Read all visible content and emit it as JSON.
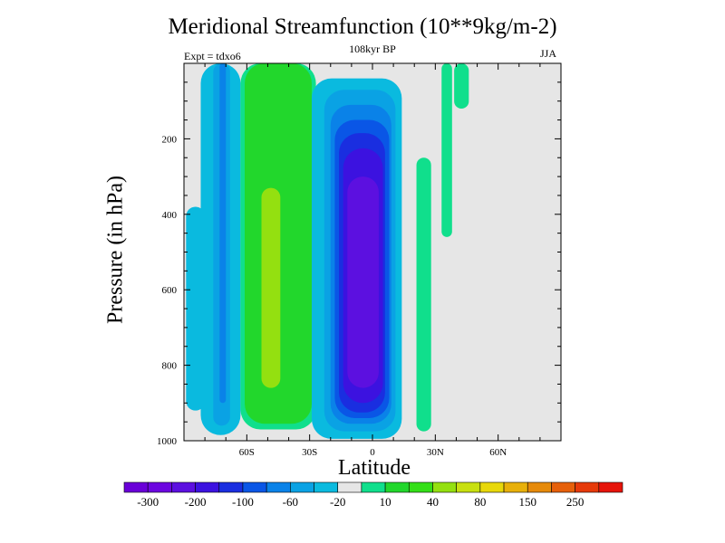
{
  "chart_data": {
    "type": "heatmap",
    "title": "Meridional Streamfunction (10**9kg/m-2)",
    "subtitle": "108kyr BP",
    "left_label": "Expt = tdxo6",
    "right_label": "JJA",
    "xlabel": "Latitude",
    "ylabel": "Pressure (in hPa)",
    "xlim": [
      -90,
      90
    ],
    "ylim": [
      1000,
      0
    ],
    "y_inverted": true,
    "x_ticks": [
      {
        "value": -60,
        "label": "60S"
      },
      {
        "value": -30,
        "label": "30S"
      },
      {
        "value": 0,
        "label": "0"
      },
      {
        "value": 30,
        "label": "30N"
      },
      {
        "value": 60,
        "label": "60N"
      }
    ],
    "y_ticks": [
      {
        "value": 200,
        "label": "200"
      },
      {
        "value": 400,
        "label": "400"
      },
      {
        "value": 600,
        "label": "600"
      },
      {
        "value": 800,
        "label": "800"
      },
      {
        "value": 1000,
        "label": "1000"
      }
    ],
    "grid": false,
    "background_color": "#e6e6e6",
    "colorbar": {
      "colors": [
        "#6a00d8",
        "#6c06e0",
        "#5c10e0",
        "#3c12e0",
        "#1a2ee0",
        "#0a56e6",
        "#0a82e8",
        "#0aa2e4",
        "#0abadf",
        "#e6e6e6",
        "#10df8c",
        "#22d72c",
        "#34df18",
        "#94e010",
        "#c8e010",
        "#e8d80a",
        "#e8b00a",
        "#e68a0a",
        "#e6600a",
        "#e63a0a",
        "#e6140a"
      ],
      "labels": [
        {
          "boundary": 1,
          "text": "-300"
        },
        {
          "boundary": 3,
          "text": "-200"
        },
        {
          "boundary": 5,
          "text": "-100"
        },
        {
          "boundary": 7,
          "text": "-60"
        },
        {
          "boundary": 9,
          "text": "-20"
        },
        {
          "boundary": 11,
          "text": "10"
        },
        {
          "boundary": 13,
          "text": "40"
        },
        {
          "boundary": 15,
          "text": "80"
        },
        {
          "boundary": 17,
          "text": "150"
        },
        {
          "boundary": 19,
          "text": "250"
        }
      ]
    },
    "regions": [
      {
        "name": "sh-negative-cell-outer",
        "color": "#0abadf",
        "lat_min": -82,
        "lat_max": -63,
        "p_top": 0,
        "p_bottom": 985
      },
      {
        "name": "sh-negative-cell-mid",
        "color": "#0aa2e4",
        "lat_min": -76,
        "lat_max": -68,
        "p_top": 0,
        "p_bottom": 960
      },
      {
        "name": "sh-negative-cell-core",
        "color": "#0a82e8",
        "lat_min": -73,
        "lat_max": -70,
        "p_top": 0,
        "p_bottom": 900
      },
      {
        "name": "sh-positive-cell-outer",
        "color": "#10df8c",
        "lat_min": -63,
        "lat_max": -27,
        "p_top": 0,
        "p_bottom": 970
      },
      {
        "name": "sh-positive-cell-mid",
        "color": "#22d72c",
        "lat_min": -61,
        "lat_max": -29,
        "p_top": 0,
        "p_bottom": 955
      },
      {
        "name": "sh-positive-cell-core",
        "color": "#94e010",
        "lat_min": -53,
        "lat_max": -44,
        "p_top": 330,
        "p_bottom": 860
      },
      {
        "name": "sh-weak-positive-band",
        "color": "#0abadf",
        "lat_min": -89,
        "lat_max": -80,
        "p_top": 380,
        "p_bottom": 920
      },
      {
        "name": "hadley-cell-edge",
        "color": "#0abadf",
        "lat_min": -29,
        "lat_max": 14,
        "p_top": 40,
        "p_bottom": 995
      },
      {
        "name": "hadley-cell-ring-1",
        "color": "#0aa2e4",
        "lat_min": -23,
        "lat_max": 11,
        "p_top": 70,
        "p_bottom": 975
      },
      {
        "name": "hadley-cell-ring-2",
        "color": "#0a82e8",
        "lat_min": -20,
        "lat_max": 9,
        "p_top": 110,
        "p_bottom": 955
      },
      {
        "name": "hadley-cell-ring-3",
        "color": "#0a56e6",
        "lat_min": -18,
        "lat_max": 8,
        "p_top": 150,
        "p_bottom": 940
      },
      {
        "name": "hadley-cell-ring-4",
        "color": "#1a2ee0",
        "lat_min": -16,
        "lat_max": 6,
        "p_top": 185,
        "p_bottom": 925
      },
      {
        "name": "hadley-cell-ring-5",
        "color": "#3c12e0",
        "lat_min": -14,
        "lat_max": 5,
        "p_top": 225,
        "p_bottom": 900
      },
      {
        "name": "hadley-cell-core",
        "color": "#5c10e0",
        "lat_min": -12,
        "lat_max": 3,
        "p_top": 300,
        "p_bottom": 860
      },
      {
        "name": "nh-tropical-positive",
        "color": "#10df8c",
        "lat_min": 21,
        "lat_max": 28,
        "p_top": 250,
        "p_bottom": 975
      },
      {
        "name": "nh-subtropical-positive",
        "color": "#10df8c",
        "lat_min": 33,
        "lat_max": 38,
        "p_top": 0,
        "p_bottom": 460
      },
      {
        "name": "nh-midlatitude-positive",
        "color": "#10df8c",
        "lat_min": 39,
        "lat_max": 46,
        "p_top": 0,
        "p_bottom": 120
      }
    ]
  }
}
